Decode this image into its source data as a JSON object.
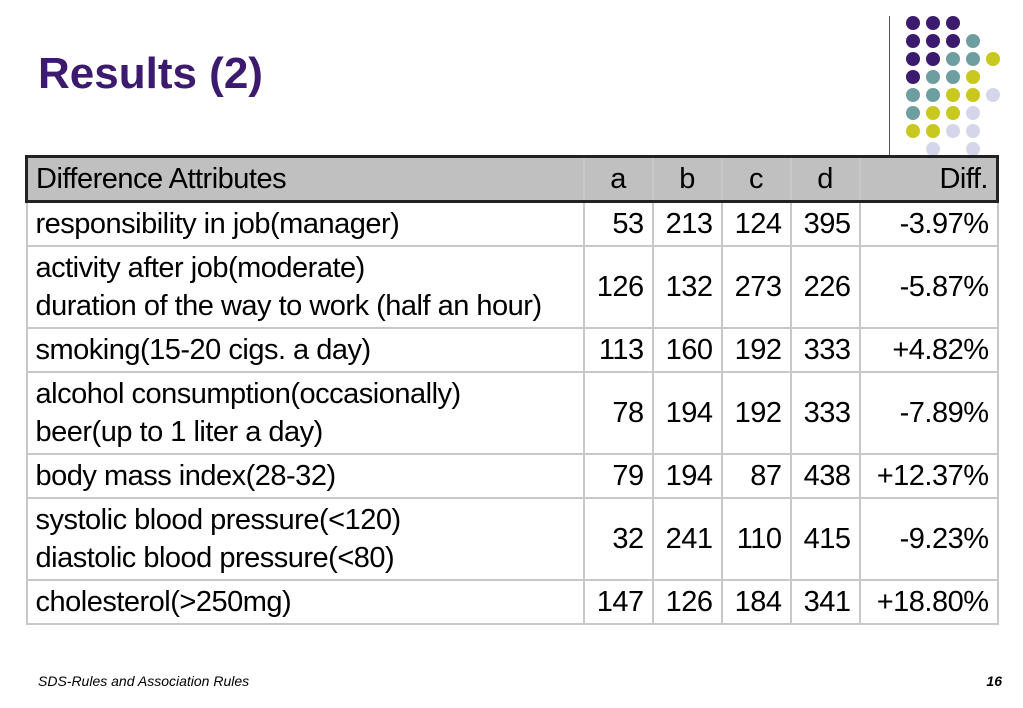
{
  "slide": {
    "title": "Results (2)",
    "footer_left": "SDS-Rules and Association Rules",
    "page_number": "16"
  },
  "colors": {
    "title": "#3c1a6e",
    "dot_purple": "#3c1a6e",
    "dot_teal": "#6f9ea0",
    "dot_yellow": "#c8c81e",
    "dot_lavender": "#d6d6ea",
    "header_bg": "#c0c0c0"
  },
  "table": {
    "headers": [
      "Difference Attributes",
      "a",
      "b",
      "c",
      "d",
      "Diff."
    ],
    "rows": [
      {
        "attr": [
          "responsibility in job(manager)"
        ],
        "a": "53",
        "b": "213",
        "c": "124",
        "d": "395",
        "diff": "-3.97%"
      },
      {
        "attr": [
          "activity after job(moderate)",
          "duration of the way to work (half an hour)"
        ],
        "a": "126",
        "b": "132",
        "c": "273",
        "d": "226",
        "diff": "-5.87%"
      },
      {
        "attr": [
          "smoking(15-20 cigs. a day)"
        ],
        "a": "113",
        "b": "160",
        "c": "192",
        "d": "333",
        "diff": "+4.82%"
      },
      {
        "attr": [
          "alcohol consumption(occasionally)",
          "beer(up to 1 liter a day)"
        ],
        "a": "78",
        "b": "194",
        "c": "192",
        "d": "333",
        "diff": "-7.89%"
      },
      {
        "attr": [
          "body mass index(28-32)"
        ],
        "a": "79",
        "b": "194",
        "c": "87",
        "d": "438",
        "diff": "+12.37%"
      },
      {
        "attr": [
          "systolic blood pressure(<120)",
          "diastolic blood pressure(<80)"
        ],
        "a": "32",
        "b": "241",
        "c": "110",
        "d": "415",
        "diff": "-9.23%"
      },
      {
        "attr": [
          "cholesterol(>250mg)"
        ],
        "a": "147",
        "b": "126",
        "c": "184",
        "d": "341",
        "diff": "+18.80%"
      }
    ]
  }
}
